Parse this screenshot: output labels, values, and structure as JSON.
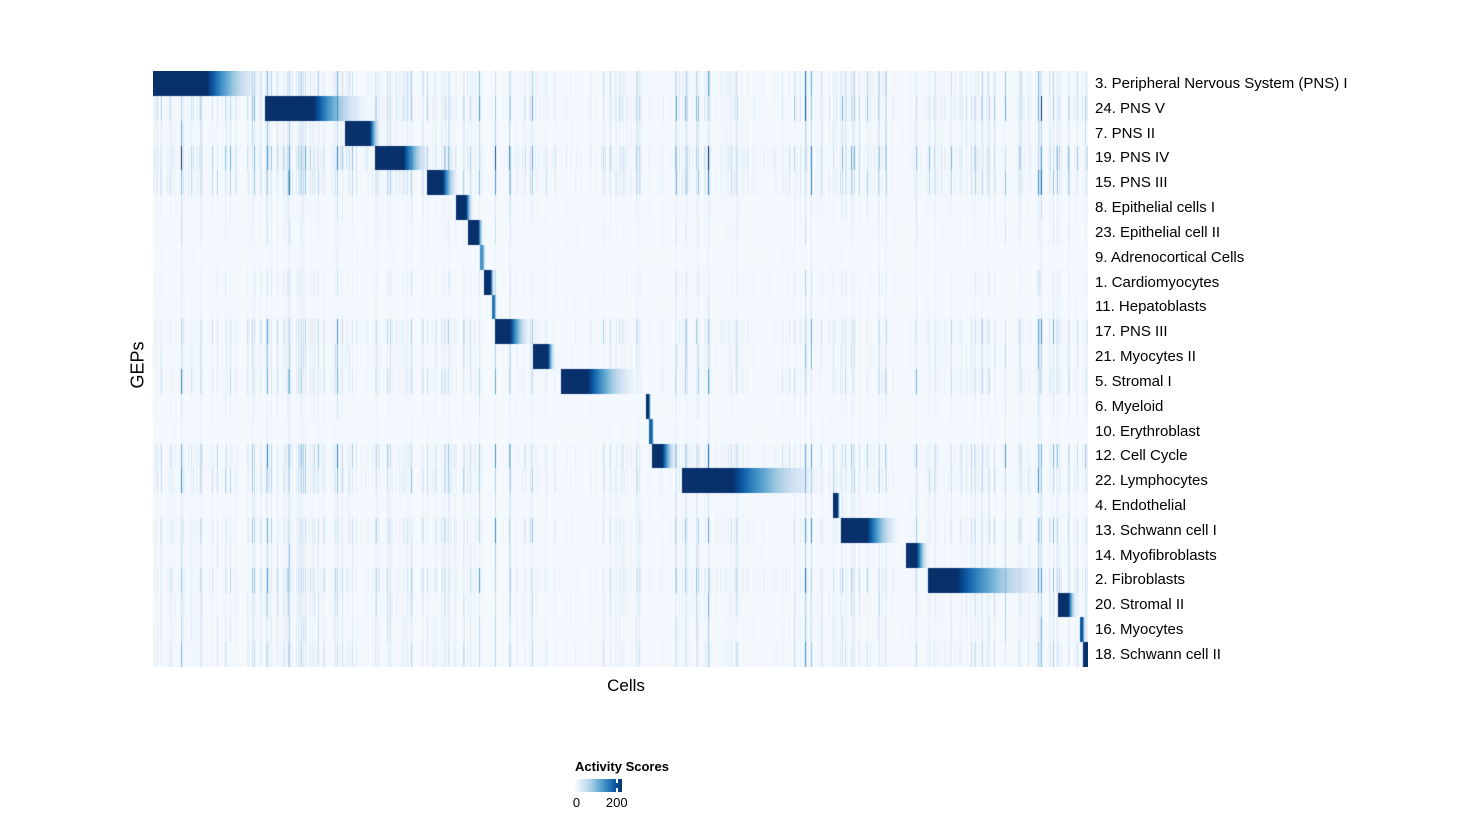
{
  "chart_data": {
    "type": "heatmap",
    "title": "",
    "xlabel": "Cells",
    "ylabel": "GEPs",
    "grid": false,
    "legend": {
      "title": "Activity Scores",
      "min_label": "0",
      "max_label": "200",
      "min_value": 0,
      "tick_value": 200,
      "max_value": 225,
      "position": "bottom-left"
    },
    "colormap": {
      "name": "Blues",
      "stops": [
        "#F7FBFF",
        "#DEEBF7",
        "#C6DBEF",
        "#9ECAE1",
        "#6BAED6",
        "#4292C6",
        "#2171B5",
        "#08519C",
        "#08306B"
      ]
    },
    "value_range": [
      0,
      225
    ],
    "x_axis": {
      "label": "Cells",
      "tick_labels_shown": false,
      "n_columns_rendered": 935
    },
    "background_value": 0.013,
    "base_noise": 0.13,
    "seed": 11,
    "noise_bands": [
      [
        0.0,
        0.12,
        0.42
      ],
      [
        0.105,
        0.205,
        0.5
      ],
      [
        0.205,
        0.345,
        0.38
      ],
      [
        0.395,
        0.43,
        0.3
      ],
      [
        0.475,
        0.525,
        0.35
      ],
      [
        0.558,
        0.625,
        0.5
      ],
      [
        0.655,
        0.73,
        0.3
      ],
      [
        0.73,
        0.79,
        0.45
      ],
      [
        0.828,
        0.9,
        0.4
      ],
      [
        0.925,
        0.965,
        0.3
      ],
      [
        0.965,
        1.0,
        0.45
      ]
    ],
    "rows": [
      {
        "label": "3. Peripheral Nervous System (PNS) I",
        "start": 0.0,
        "dark_end": 0.058,
        "fade_end": 0.123,
        "peak": 1.0,
        "noise": 0.55
      },
      {
        "label": "24. PNS V",
        "start": 0.12,
        "dark_end": 0.172,
        "fade_end": 0.235,
        "peak": 1.0,
        "noise": 0.7
      },
      {
        "label": "7. PNS II",
        "start": 0.205,
        "dark_end": 0.232,
        "fade_end": 0.245,
        "peak": 1.0,
        "noise": 0.4
      },
      {
        "label": "19. PNS IV",
        "start": 0.237,
        "dark_end": 0.268,
        "fade_end": 0.3,
        "peak": 1.0,
        "noise": 0.85
      },
      {
        "label": "15. PNS III",
        "start": 0.293,
        "dark_end": 0.31,
        "fade_end": 0.328,
        "peak": 1.0,
        "noise": 0.65
      },
      {
        "label": "8. Epithelial cells I",
        "start": 0.324,
        "dark_end": 0.335,
        "fade_end": 0.343,
        "peak": 1.0,
        "noise": 0.22
      },
      {
        "label": "23. Epithelial cell II",
        "start": 0.337,
        "dark_end": 0.348,
        "fade_end": 0.354,
        "peak": 1.0,
        "noise": 0.2
      },
      {
        "label": "9. Adrenocortical Cells",
        "start": 0.3495,
        "dark_end": 0.353,
        "fade_end": 0.356,
        "peak": 0.62,
        "noise": 0.12
      },
      {
        "label": "1. Cardiomyocytes",
        "start": 0.3535,
        "dark_end": 0.361,
        "fade_end": 0.366,
        "peak": 1.0,
        "noise": 0.25
      },
      {
        "label": "11. Hepatoblasts",
        "start": 0.3625,
        "dark_end": 0.3655,
        "fade_end": 0.368,
        "peak": 0.72,
        "noise": 0.15
      },
      {
        "label": "17. PNS III",
        "start": 0.366,
        "dark_end": 0.382,
        "fade_end": 0.406,
        "peak": 1.0,
        "noise": 0.55
      },
      {
        "label": "21. Myocytes II",
        "start": 0.406,
        "dark_end": 0.4225,
        "fade_end": 0.431,
        "peak": 1.0,
        "noise": 0.4
      },
      {
        "label": "5. Stromal I",
        "start": 0.436,
        "dark_end": 0.465,
        "fade_end": 0.524,
        "peak": 1.0,
        "noise": 0.5
      },
      {
        "label": "6. Myeloid",
        "start": 0.5275,
        "dark_end": 0.5305,
        "fade_end": 0.533,
        "peak": 1.0,
        "noise": 0.18
      },
      {
        "label": "10. Erythroblast",
        "start": 0.531,
        "dark_end": 0.534,
        "fade_end": 0.536,
        "peak": 0.8,
        "noise": 0.12
      },
      {
        "label": "12. Cell Cycle",
        "start": 0.534,
        "dark_end": 0.545,
        "fade_end": 0.562,
        "peak": 1.0,
        "noise": 0.65
      },
      {
        "label": "22. Lymphocytes",
        "start": 0.566,
        "dark_end": 0.62,
        "fade_end": 0.727,
        "peak": 1.0,
        "noise": 0.6
      },
      {
        "label": "4. Endothelial",
        "start": 0.7275,
        "dark_end": 0.7325,
        "fade_end": 0.735,
        "peak": 1.0,
        "noise": 0.25
      },
      {
        "label": "13. Schwann cell I",
        "start": 0.736,
        "dark_end": 0.764,
        "fade_end": 0.802,
        "peak": 1.0,
        "noise": 0.55
      },
      {
        "label": "14. Myofibroblasts",
        "start": 0.805,
        "dark_end": 0.817,
        "fade_end": 0.831,
        "peak": 1.0,
        "noise": 0.3
      },
      {
        "label": "2. Fibroblasts",
        "start": 0.829,
        "dark_end": 0.86,
        "fade_end": 0.968,
        "peak": 1.0,
        "noise": 0.6
      },
      {
        "label": "20. Stromal II",
        "start": 0.968,
        "dark_end": 0.979,
        "fade_end": 0.989,
        "peak": 1.0,
        "noise": 0.4
      },
      {
        "label": "16. Myocytes",
        "start": 0.9914,
        "dark_end": 0.9947,
        "fade_end": 0.997,
        "peak": 0.85,
        "noise": 0.35
      },
      {
        "label": "18. Schwann cell II",
        "start": 0.9947,
        "dark_end": 1.0,
        "fade_end": 1.0,
        "peak": 1.0,
        "noise": 0.45
      }
    ]
  }
}
